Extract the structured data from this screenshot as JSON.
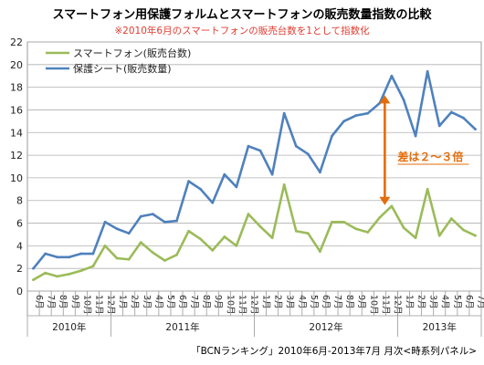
{
  "chart_data": {
    "type": "line",
    "title": "スマートフォン用保護フォルムとスマートフォンの販売数量指数の比較",
    "subtitle": "※2010年6月のスマートフォンの販売台数を1として指数化",
    "source": "「BCNランキング」2010年6月-2013年7月 月次<時系列パネル>",
    "ylim": [
      0,
      22
    ],
    "y_ticks": [
      0,
      2,
      4,
      6,
      8,
      10,
      12,
      14,
      16,
      18,
      20,
      22
    ],
    "grid": true,
    "legend_placement": "top-left",
    "month_labels": [
      "6月",
      "7月",
      "8月",
      "9月",
      "10月",
      "11月",
      "12月",
      "1月",
      "2月",
      "3月",
      "4月",
      "5月",
      "6月",
      "7月",
      "8月",
      "9月",
      "10月",
      "11月",
      "12月",
      "1月",
      "2月",
      "3月",
      "4月",
      "5月",
      "6月",
      "7月",
      "8月",
      "9月",
      "10月",
      "11月",
      "12月",
      "1月",
      "2月",
      "3月",
      "4月",
      "5月",
      "6月",
      "7月"
    ],
    "year_groups": [
      {
        "label": "2010年",
        "start": 0,
        "end": 6
      },
      {
        "label": "2011年",
        "start": 7,
        "end": 18
      },
      {
        "label": "2012年",
        "start": 19,
        "end": 30
      },
      {
        "label": "2013年",
        "start": 31,
        "end": 37
      }
    ],
    "series": [
      {
        "name": "スマートフォン(販売台数)",
        "color": "#9bbb59",
        "values": [
          1.0,
          1.6,
          1.3,
          1.5,
          1.8,
          2.2,
          4.0,
          2.9,
          2.8,
          4.3,
          3.4,
          2.7,
          3.2,
          5.3,
          4.6,
          3.6,
          4.8,
          4.0,
          6.8,
          5.7,
          4.7,
          9.4,
          5.3,
          5.1,
          3.5,
          6.1,
          6.1,
          5.5,
          5.2,
          6.5,
          7.5,
          5.6,
          4.7,
          9.0,
          4.9,
          6.4,
          5.4,
          4.9
        ]
      },
      {
        "name": "保護シート(販売数量)",
        "color": "#4f81bd",
        "values": [
          2.0,
          3.3,
          3.0,
          3.0,
          3.3,
          3.3,
          6.1,
          5.5,
          5.1,
          6.6,
          6.8,
          6.1,
          6.2,
          9.7,
          9.0,
          7.8,
          10.3,
          9.2,
          12.8,
          12.4,
          10.3,
          15.7,
          12.8,
          12.1,
          10.5,
          13.7,
          15.0,
          15.5,
          15.7,
          16.6,
          19.0,
          16.9,
          13.7,
          19.4,
          14.6,
          15.8,
          15.3,
          14.3
        ]
      }
    ],
    "annotation": {
      "text": "差は２〜３倍",
      "color": "#e46c0a",
      "x_index": 30,
      "y_from": 7.6,
      "y_to": 17.3
    }
  }
}
